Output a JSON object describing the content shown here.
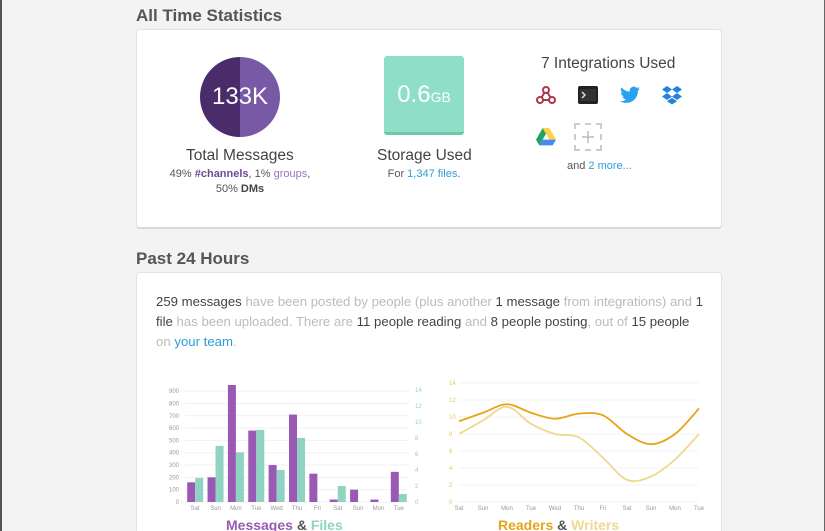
{
  "all_time": {
    "heading": "All Time Statistics",
    "messages": {
      "count": "133K",
      "title": "Total Messages",
      "pct_channels": "49%",
      "channels_label": "#channels",
      "pct_groups": "1%",
      "groups_label": "groups",
      "pct_dms": "50%",
      "dms_label": "DMs"
    },
    "storage": {
      "value": "0.6",
      "unit": "GB",
      "title": "Storage Used",
      "files_prefix": "For",
      "files_link": "1,347 files",
      "files_suffix": "."
    },
    "integrations": {
      "title": "7 Integrations Used",
      "icons": [
        "webhook-icon",
        "terminal-icon",
        "twitter-icon",
        "dropbox-icon",
        "google-drive-icon",
        "add-integration-icon"
      ],
      "more_prefix": "and",
      "more_link": "2 more..."
    }
  },
  "past24": {
    "heading": "Past 24 Hours",
    "intro": {
      "messages": "259 messages",
      "t1": "have been posted by people (plus another",
      "integration_msgs": "1 message",
      "t2": "from integrations) and",
      "files": "1 file",
      "t3": "has been uploaded. There are",
      "reading": "11 people reading",
      "t4": "and",
      "posting": "8 people posting",
      "t5": ", out of",
      "total": "15 people",
      "t6": "on",
      "team_link": "your team",
      "t7": "."
    }
  },
  "colors": {
    "messages": "#9b59b6",
    "files": "#8fd3c2",
    "readers": "#e8a317",
    "writers": "#f0d890",
    "link": "#2a9fd6"
  },
  "chart_data": [
    {
      "type": "bar",
      "categories": [
        "Sat",
        "Sun",
        "Mon",
        "Tue",
        "Wed",
        "Thu",
        "Fri",
        "Sat",
        "Sun",
        "Mon",
        "Tue"
      ],
      "series": [
        {
          "name": "Messages",
          "axis": "left",
          "values": [
            160,
            200,
            950,
            580,
            300,
            710,
            230,
            20,
            100,
            20,
            245
          ]
        },
        {
          "name": "Files",
          "axis": "right",
          "values": [
            3,
            7,
            6.2,
            9,
            4,
            8,
            0,
            2,
            0,
            0,
            1
          ]
        }
      ],
      "y_left": {
        "min": 0,
        "max": 900,
        "ticks": [
          0,
          100,
          200,
          300,
          400,
          500,
          600,
          700,
          800,
          900
        ]
      },
      "y_right": {
        "min": 0,
        "max": 14,
        "ticks": [
          0,
          2,
          4,
          6,
          8,
          10,
          12,
          14
        ]
      },
      "legend": {
        "messages": "Messages",
        "amp": "&",
        "files": "Files"
      }
    },
    {
      "type": "line",
      "categories": [
        "Sat",
        "Sun",
        "Mon",
        "Tue",
        "Wed",
        "Thu",
        "Fri",
        "Sat",
        "Sun",
        "Mon",
        "Tue"
      ],
      "series": [
        {
          "name": "Readers",
          "values": [
            9.5,
            10.5,
            11.5,
            10.5,
            9.8,
            10.4,
            10.2,
            8,
            6.8,
            8,
            11
          ]
        },
        {
          "name": "Writers",
          "values": [
            8,
            9.6,
            11.2,
            9.2,
            8,
            7.6,
            5.2,
            2.6,
            3,
            5,
            8
          ]
        }
      ],
      "ylim": [
        0,
        14
      ],
      "y_ticks": [
        0,
        2,
        4,
        6,
        8,
        10,
        12,
        14
      ],
      "legend": {
        "readers": "Readers",
        "amp": "&",
        "writers": "Writers"
      }
    }
  ]
}
